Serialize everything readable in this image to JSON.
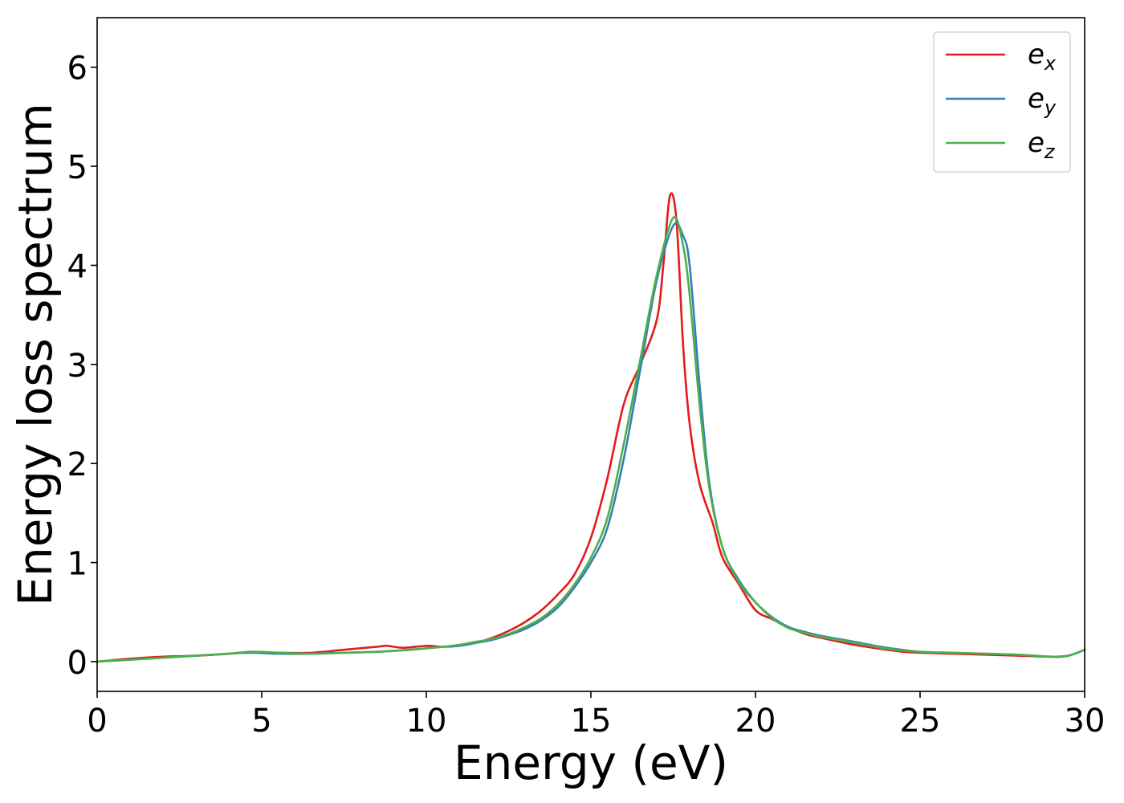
{
  "chart_data": {
    "type": "line",
    "title": "",
    "xlabel": "Energy (eV)",
    "ylabel": "Energy loss spectrum",
    "xlim": [
      0,
      30
    ],
    "ylim": [
      -0.3,
      6.5
    ],
    "xticks": [
      0,
      5,
      10,
      15,
      20,
      25,
      30
    ],
    "xtick_labels": [
      "0",
      "5",
      "10",
      "15",
      "20",
      "25",
      "30"
    ],
    "yticks": [
      0,
      1,
      2,
      3,
      4,
      5,
      6
    ],
    "ytick_labels": [
      "0",
      "1",
      "2",
      "3",
      "4",
      "5",
      "6"
    ],
    "grid": false,
    "legend_position": "top-right",
    "series": [
      {
        "name": "e_x",
        "legend_base": "e",
        "legend_sub": "x",
        "color": "#e41a1c",
        "x": [
          0,
          1,
          2,
          3,
          4,
          4.7,
          5.5,
          6.5,
          7.5,
          8.5,
          8.8,
          9.3,
          10,
          10.5,
          11,
          11.5,
          12,
          12.5,
          13,
          13.5,
          14,
          14.5,
          15,
          15.5,
          16,
          16.5,
          17,
          17.2,
          17.4,
          17.6,
          17.8,
          18,
          18.3,
          18.7,
          19,
          19.5,
          20,
          20.5,
          21,
          21.5,
          22,
          23,
          24,
          24.5,
          25,
          26,
          27,
          28,
          29,
          29.5,
          30
        ],
        "y": [
          0,
          0.03,
          0.05,
          0.06,
          0.08,
          0.1,
          0.09,
          0.09,
          0.12,
          0.15,
          0.16,
          0.14,
          0.16,
          0.15,
          0.16,
          0.19,
          0.24,
          0.31,
          0.4,
          0.52,
          0.68,
          0.88,
          1.25,
          1.85,
          2.6,
          3.0,
          3.45,
          4.0,
          4.7,
          4.45,
          3.2,
          2.4,
          1.8,
          1.4,
          1.05,
          0.78,
          0.52,
          0.43,
          0.35,
          0.28,
          0.24,
          0.17,
          0.12,
          0.1,
          0.09,
          0.08,
          0.07,
          0.06,
          0.05,
          0.06,
          0.12
        ]
      },
      {
        "name": "e_y",
        "legend_base": "e",
        "legend_sub": "y",
        "color": "#377eb8",
        "x": [
          0,
          1,
          2,
          3,
          4,
          4.7,
          5.5,
          6.5,
          7.5,
          8.5,
          9.5,
          10.5,
          11,
          11.5,
          12,
          12.5,
          13,
          13.5,
          14,
          14.5,
          15,
          15.5,
          16,
          16.5,
          17,
          17.5,
          17.8,
          18,
          18.3,
          18.6,
          19,
          19.5,
          20,
          20.5,
          21,
          21.5,
          22,
          23,
          24,
          25,
          26,
          27,
          28,
          29,
          29.5,
          30
        ],
        "y": [
          0,
          0.02,
          0.04,
          0.06,
          0.08,
          0.09,
          0.08,
          0.08,
          0.09,
          0.1,
          0.12,
          0.15,
          0.16,
          0.19,
          0.22,
          0.27,
          0.33,
          0.42,
          0.55,
          0.75,
          1.0,
          1.35,
          2.05,
          2.95,
          3.85,
          4.4,
          4.3,
          4.0,
          2.8,
          1.8,
          1.15,
          0.82,
          0.6,
          0.45,
          0.35,
          0.3,
          0.26,
          0.2,
          0.14,
          0.1,
          0.09,
          0.08,
          0.07,
          0.05,
          0.06,
          0.12
        ]
      },
      {
        "name": "e_z",
        "legend_base": "e",
        "legend_sub": "z",
        "color": "#4daf4a",
        "x": [
          0,
          1,
          2,
          3,
          4,
          4.7,
          5.5,
          6.5,
          7.5,
          8.5,
          9.5,
          10.5,
          11,
          11.5,
          12,
          12.5,
          13,
          13.5,
          14,
          14.5,
          15,
          15.5,
          16,
          16.5,
          17,
          17.5,
          17.8,
          18,
          18.3,
          18.6,
          19,
          19.5,
          20,
          20.5,
          21,
          21.5,
          22,
          23,
          24,
          25,
          26,
          27,
          28,
          29,
          29.5,
          30
        ],
        "y": [
          0,
          0.02,
          0.04,
          0.06,
          0.08,
          0.1,
          0.09,
          0.08,
          0.09,
          0.1,
          0.12,
          0.15,
          0.17,
          0.2,
          0.23,
          0.28,
          0.35,
          0.44,
          0.58,
          0.78,
          1.05,
          1.45,
          2.2,
          3.05,
          3.9,
          4.48,
          4.2,
          3.7,
          2.6,
          1.75,
          1.15,
          0.8,
          0.6,
          0.44,
          0.34,
          0.29,
          0.25,
          0.19,
          0.13,
          0.1,
          0.09,
          0.08,
          0.07,
          0.05,
          0.06,
          0.12
        ]
      }
    ]
  }
}
